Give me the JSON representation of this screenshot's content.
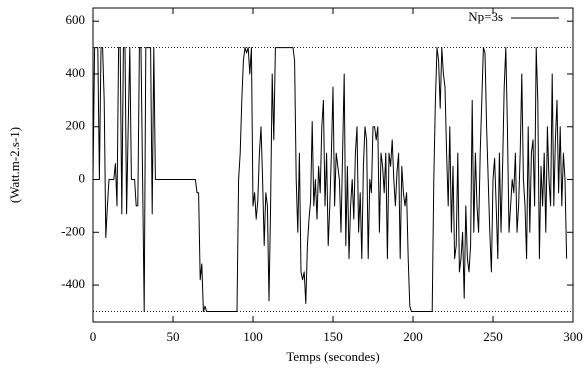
{
  "chart_data": {
    "type": "line",
    "xlabel": "Temps (secondes)",
    "ylabel": "(Watt.m-2.s-1)",
    "xlim": [
      0,
      300
    ],
    "ylim": [
      -540,
      650
    ],
    "xticks": [
      0,
      50,
      100,
      150,
      200,
      250,
      300
    ],
    "yticks": [
      -400,
      -200,
      0,
      200,
      400,
      600
    ],
    "reference_lines": [
      500,
      -500
    ],
    "legend": "top-right",
    "x": [
      0,
      1,
      2,
      3,
      4,
      5,
      6,
      7,
      8,
      9,
      10,
      11,
      12,
      13,
      14,
      15,
      16,
      17,
      18,
      19,
      20,
      21,
      22,
      23,
      24,
      25,
      26,
      27,
      28,
      29,
      30,
      31,
      32,
      33,
      34,
      35,
      36,
      37,
      38,
      39,
      64,
      65,
      66,
      67,
      68,
      69,
      70,
      71,
      72,
      73,
      74,
      75,
      76,
      77,
      78,
      79,
      80,
      81,
      82,
      83,
      84,
      85,
      86,
      87,
      88,
      89,
      90,
      91,
      92,
      93,
      94,
      95,
      96,
      97,
      98,
      99,
      100,
      101,
      102,
      103,
      104,
      105,
      106,
      107,
      108,
      109,
      110,
      111,
      112,
      113,
      114,
      125,
      126,
      127,
      128,
      129,
      130,
      131,
      132,
      133,
      134,
      135,
      136,
      137,
      138,
      139,
      140,
      141,
      142,
      143,
      144,
      145,
      146,
      147,
      148,
      149,
      150,
      151,
      152,
      153,
      154,
      155,
      156,
      157,
      158,
      159,
      160,
      161,
      162,
      163,
      164,
      165,
      166,
      167,
      168,
      169,
      170,
      171,
      172,
      173,
      174,
      175,
      176,
      177,
      178,
      179,
      180,
      181,
      182,
      183,
      184,
      185,
      186,
      187,
      188,
      189,
      190,
      191,
      192,
      193,
      194,
      195,
      196,
      197,
      198,
      199,
      212,
      213,
      214,
      215,
      216,
      217,
      218,
      219,
      220,
      221,
      222,
      223,
      224,
      225,
      226,
      227,
      228,
      229,
      230,
      231,
      232,
      233,
      234,
      235,
      236,
      237,
      238,
      239,
      240,
      241,
      242,
      243,
      244,
      245,
      246,
      247,
      248,
      249,
      250,
      251,
      252,
      253,
      254,
      255,
      256,
      257,
      258,
      259,
      260,
      261,
      262,
      263,
      264,
      265,
      266,
      267,
      268,
      269,
      270,
      271,
      272,
      273,
      274,
      275,
      276,
      277,
      278,
      279,
      280,
      281,
      282,
      283,
      284,
      285,
      286,
      287,
      288,
      289,
      290,
      291,
      292,
      293,
      294,
      295,
      296
    ],
    "series": [
      {
        "name": "Np=3s",
        "color": "#000000",
        "values": [
          0,
          500,
          500,
          500,
          0,
          500,
          500,
          300,
          -220,
          -100,
          0,
          0,
          0,
          0,
          60,
          -100,
          500,
          500,
          -130,
          500,
          500,
          -130,
          200,
          500,
          0,
          0,
          0,
          -100,
          -100,
          500,
          500,
          0,
          -500,
          500,
          500,
          500,
          500,
          -130,
          500,
          0,
          0,
          -50,
          -50,
          -380,
          -320,
          -500,
          -480,
          -500,
          -500,
          -500,
          -500,
          -500,
          -500,
          -500,
          -500,
          -500,
          -500,
          -500,
          -500,
          -500,
          -500,
          -500,
          -500,
          -500,
          -500,
          -500,
          -500,
          0,
          100,
          300,
          450,
          500,
          480,
          500,
          400,
          500,
          -100,
          -50,
          -150,
          -80,
          100,
          200,
          0,
          -250,
          -50,
          -100,
          -460,
          -100,
          400,
          150,
          500,
          500,
          450,
          0,
          -200,
          100,
          -350,
          -380,
          -350,
          -470,
          -250,
          -150,
          -80,
          220,
          -100,
          0,
          -150,
          50,
          -50,
          200,
          300,
          -100,
          100,
          -250,
          -100,
          100,
          350,
          -100,
          100,
          50,
          0,
          -200,
          100,
          400,
          -250,
          50,
          -300,
          -100,
          0,
          -150,
          100,
          200,
          -200,
          -50,
          -300,
          50,
          200,
          150,
          -300,
          0,
          -50,
          200,
          200,
          150,
          200,
          -200,
          100,
          50,
          -50,
          100,
          -300,
          100,
          50,
          150,
          0,
          -100,
          30,
          100,
          -300,
          50,
          -50,
          -100,
          -50,
          -300,
          -480,
          -500,
          -500,
          0,
          300,
          500,
          450,
          270,
          500,
          400,
          350,
          100,
          -100,
          200,
          -200,
          50,
          -300,
          -250,
          100,
          -350,
          -300,
          -200,
          -450,
          -100,
          -300,
          -350,
          -250,
          300,
          -200,
          100,
          -100,
          -200,
          100,
          300,
          500,
          480,
          200,
          0,
          -200,
          -350,
          0,
          80,
          -100,
          -300,
          100,
          -200,
          50,
          350,
          500,
          200,
          -200,
          -100,
          0,
          -50,
          100,
          -200,
          -100,
          100,
          400,
          0,
          -100,
          -300,
          200,
          -200,
          100,
          150,
          -100,
          500,
          300,
          -300,
          50,
          -100,
          100,
          -200,
          200,
          0,
          -100,
          400,
          -100,
          150,
          300,
          -50,
          200,
          -100,
          100,
          0,
          -300
        ]
      }
    ]
  }
}
